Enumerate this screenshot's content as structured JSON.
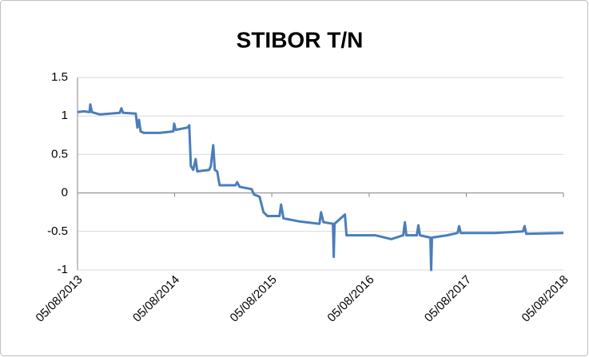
{
  "chart_data": {
    "type": "line",
    "title": "STIBOR T/N",
    "x": [
      "2013-08-05",
      "2013-08-29",
      "2013-09-19",
      "2013-09-22",
      "2013-09-28",
      "2013-10-28",
      "2014-01-11",
      "2014-01-17",
      "2014-01-23",
      "2014-03-12",
      "2014-03-18",
      "2014-03-24",
      "2014-03-30",
      "2014-04-11",
      "2014-06-10",
      "2014-07-31",
      "2014-08-03",
      "2014-08-09",
      "2014-09-23",
      "2014-09-29",
      "2014-10-05",
      "2014-10-14",
      "2014-10-23",
      "2014-10-29",
      "2014-12-13",
      "2014-12-19",
      "2014-12-28",
      "2015-01-03",
      "2015-01-12",
      "2015-01-21",
      "2015-03-22",
      "2015-03-28",
      "2015-04-06",
      "2015-05-21",
      "2015-05-30",
      "2015-06-20",
      "2015-07-05",
      "2015-07-20",
      "2015-09-03",
      "2015-09-09",
      "2015-09-18",
      "2015-11-17",
      "2016-01-31",
      "2016-02-06",
      "2016-02-15",
      "2016-03-22",
      "2016-03-25",
      "2016-03-28",
      "2016-05-06",
      "2016-05-12",
      "2016-08-28",
      "2016-10-27",
      "2016-12-11",
      "2016-12-17",
      "2016-12-23",
      "2017-01-31",
      "2017-02-06",
      "2017-02-12",
      "2017-03-23",
      "2017-03-26",
      "2017-03-29",
      "2017-05-25",
      "2017-07-03",
      "2017-07-09",
      "2017-07-15",
      "2017-11-21",
      "2018-03-06",
      "2018-03-12",
      "2018-03-18",
      "2018-08-05"
    ],
    "series": [
      {
        "name": "STIBOR T/N",
        "color": "#4a7ebb",
        "values": [
          1.05,
          1.06,
          1.05,
          1.15,
          1.05,
          1.02,
          1.04,
          1.1,
          1.04,
          1.03,
          0.85,
          0.95,
          0.8,
          0.78,
          0.78,
          0.8,
          0.9,
          0.82,
          0.85,
          0.88,
          0.35,
          0.3,
          0.44,
          0.28,
          0.3,
          0.35,
          0.62,
          0.3,
          0.28,
          0.1,
          0.1,
          0.14,
          0.08,
          0.05,
          -0.02,
          -0.05,
          -0.25,
          -0.3,
          -0.3,
          -0.15,
          -0.33,
          -0.37,
          -0.4,
          -0.25,
          -0.38,
          -0.4,
          -0.83,
          -0.4,
          -0.28,
          -0.55,
          -0.55,
          -0.6,
          -0.55,
          -0.38,
          -0.55,
          -0.55,
          -0.42,
          -0.55,
          -0.58,
          -1.0,
          -0.58,
          -0.55,
          -0.52,
          -0.43,
          -0.52,
          -0.52,
          -0.5,
          -0.43,
          -0.53,
          -0.52
        ]
      }
    ],
    "xlim": [
      "2013-08-05",
      "2018-08-05"
    ],
    "xticks": [
      {
        "value": "2013-08-05",
        "label": "05/08/2013"
      },
      {
        "value": "2014-08-05",
        "label": "05/08/2014"
      },
      {
        "value": "2015-08-05",
        "label": "05/08/2015"
      },
      {
        "value": "2016-08-05",
        "label": "05/08/2016"
      },
      {
        "value": "2017-08-05",
        "label": "05/08/2017"
      },
      {
        "value": "2018-08-05",
        "label": "05/08/2018"
      }
    ],
    "ylim": [
      -1,
      1.5
    ],
    "yticks": [
      {
        "value": -1,
        "label": "-1"
      },
      {
        "value": -0.5,
        "label": "-0.5"
      },
      0,
      0.5,
      1,
      1.5
    ],
    "grid": true
  }
}
